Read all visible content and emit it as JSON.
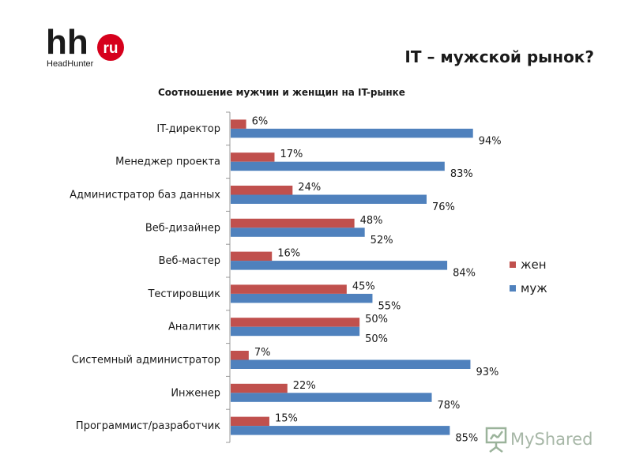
{
  "header": {
    "logo_text": "hh",
    "logo_badge": "ru",
    "logo_sub": "HeadHunter",
    "title": "IT – мужской рынок?"
  },
  "watermark": {
    "text": "MyShared"
  },
  "colors": {
    "women": "#c0504d",
    "men": "#4f81bd",
    "axis": "#999999"
  },
  "chart_data": {
    "type": "bar",
    "orientation": "horizontal",
    "title": "Соотношение мужчин и женщин на IT-рынке",
    "categories": [
      "IT-директор",
      "Менеджер проекта",
      "Администратор баз данных",
      "Веб-дизайнер",
      "Веб-мастер",
      "Тестировщик",
      "Аналитик",
      "Системный администратор",
      "Инженер",
      "Программист/разработчик"
    ],
    "series": [
      {
        "name": "жен",
        "values": [
          6,
          17,
          24,
          48,
          16,
          45,
          50,
          7,
          22,
          15
        ],
        "color": "#c0504d"
      },
      {
        "name": "муж",
        "values": [
          94,
          83,
          76,
          52,
          84,
          55,
          50,
          93,
          78,
          85
        ],
        "color": "#4f81bd"
      }
    ],
    "value_format": "%",
    "xlim": [
      0,
      100
    ],
    "grid": false,
    "legend_position": "right"
  }
}
